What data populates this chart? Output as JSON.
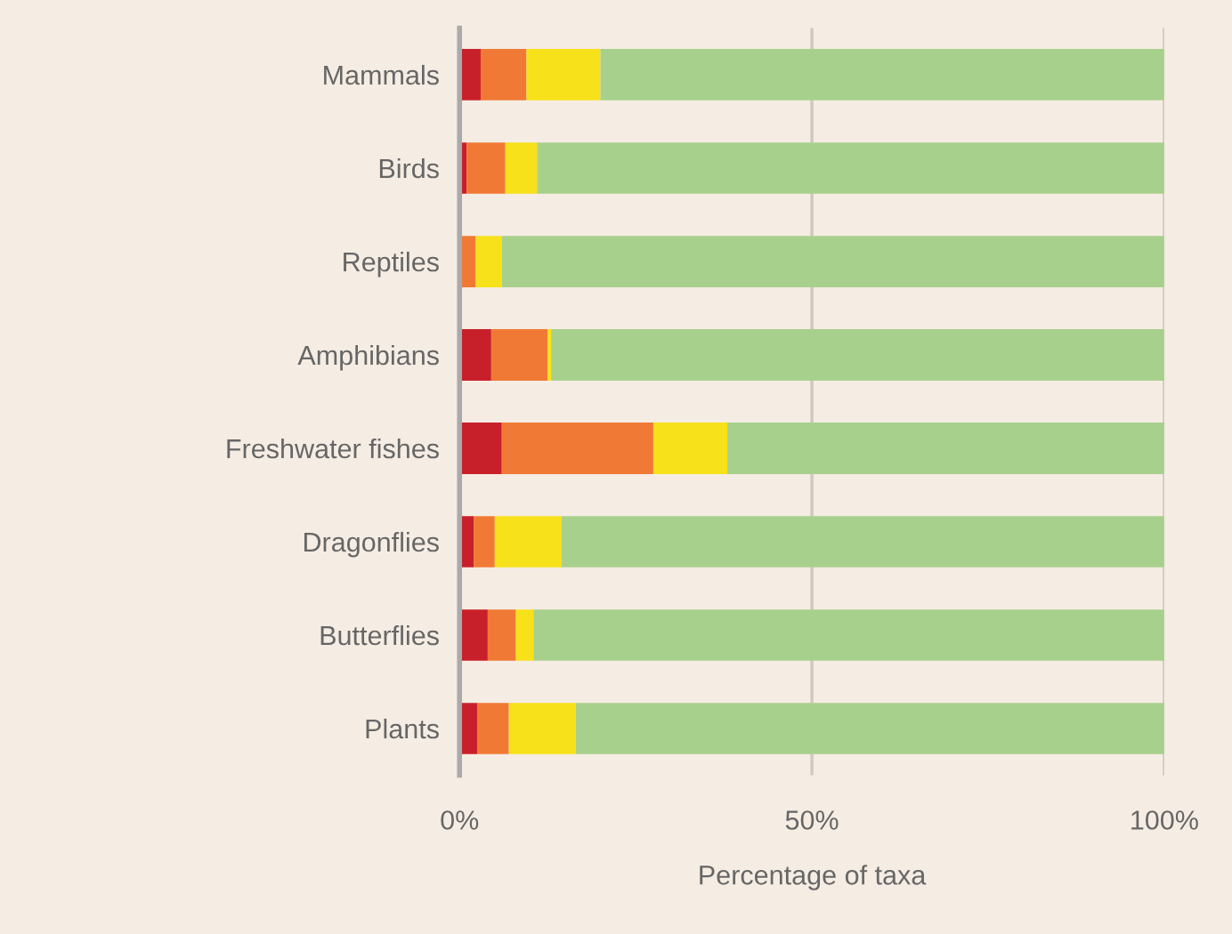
{
  "chart_data": {
    "type": "bar",
    "orientation": "horizontal",
    "stacked": true,
    "categories": [
      "Mammals",
      "Birds",
      "Reptiles",
      "Amphibians",
      "Freshwater fishes",
      "Dragonflies",
      "Butterflies",
      "Plants"
    ],
    "series": [
      {
        "color": "#c8202a",
        "values": [
          3,
          1,
          null,
          4.5,
          6,
          2,
          4,
          2.5
        ]
      },
      {
        "color": "#f07a35",
        "values": [
          6.5,
          5.5,
          2.3,
          8,
          21.5,
          3,
          4,
          4.5
        ]
      },
      {
        "color": "#f7e11a",
        "values": [
          10.5,
          4.5,
          3.7,
          0.5,
          10.5,
          9.5,
          2.5,
          9.5
        ]
      },
      {
        "color": "#a8d08d",
        "values": [
          80,
          89,
          94,
          87,
          62,
          85.5,
          89.5,
          83.5
        ]
      }
    ],
    "xlim": [
      0,
      100
    ],
    "xticks": [
      {
        "value": 0,
        "label": "0%"
      },
      {
        "value": 50,
        "label": "50%"
      },
      {
        "value": 100,
        "label": "100%"
      }
    ],
    "xlabel": "Percentage of taxa",
    "grid": "x"
  }
}
